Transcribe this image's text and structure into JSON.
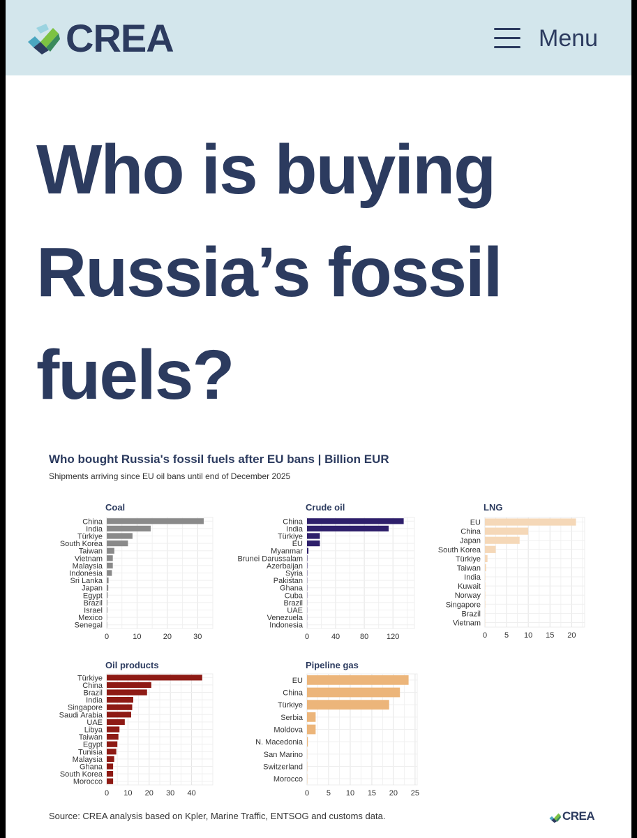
{
  "header": {
    "logo_text": "CREA",
    "menu_label": "Menu",
    "colors": {
      "background": "#d3e6ec",
      "text": "#2c3b5f"
    }
  },
  "article": {
    "headline": "Who is buying Russia’s fossil fuels?"
  },
  "figure": {
    "title": "Who bought Russia's fossil fuels after EU bans | Billion EUR",
    "subtitle": "Shipments arriving since EU oil bans until end of December 2025",
    "source": "Source: CREA analysis based on Kpler, Marine Traffic, ENTSOG and customs data.",
    "footer_logo": "CREA"
  },
  "chart_data": [
    {
      "type": "bar",
      "orientation": "horizontal",
      "title": "Coal",
      "color": "#8a8a8a",
      "categories": [
        "China",
        "India",
        "Türkiye",
        "South Korea",
        "Taiwan",
        "Vietnam",
        "Malaysia",
        "Indonesia",
        "Sri Lanka",
        "Japan",
        "Egypt",
        "Brazil",
        "Israel",
        "Mexico",
        "Senegal"
      ],
      "values": [
        32,
        14.5,
        8.5,
        7,
        2.5,
        2,
        2,
        1.7,
        0.6,
        0.5,
        0.3,
        0.2,
        0.2,
        0.1,
        0.1
      ],
      "xlim": [
        0,
        35
      ],
      "xticks": [
        0,
        10,
        20,
        30
      ]
    },
    {
      "type": "bar",
      "orientation": "horizontal",
      "title": "Crude oil",
      "color": "#2e1f6b",
      "categories": [
        "China",
        "India",
        "Türkiye",
        "EU",
        "Myanmar",
        "Brunei Darussalam",
        "Azerbaijan",
        "Syria",
        "Pakistan",
        "Ghana",
        "Cuba",
        "Brazil",
        "UAE",
        "Venezuela",
        "Indonesia"
      ],
      "values": [
        135,
        114,
        18,
        18,
        2,
        0.5,
        0.5,
        0.4,
        0.3,
        0.3,
        0.3,
        0.2,
        0.2,
        0.2,
        0.1
      ],
      "xlim": [
        0,
        150
      ],
      "xticks": [
        0,
        40,
        80,
        120
      ]
    },
    {
      "type": "bar",
      "orientation": "horizontal",
      "title": "LNG",
      "color": "#f5d8b8",
      "categories": [
        "EU",
        "China",
        "Japan",
        "South Korea",
        "Türkiye",
        "Taiwan",
        "India",
        "Kuwait",
        "Norway",
        "Singapore",
        "Brazil",
        "Vietnam"
      ],
      "values": [
        21,
        10,
        8,
        2.5,
        0.6,
        0.3,
        0.1,
        0.1,
        0.1,
        0.1,
        0.05,
        0.05
      ],
      "xlim": [
        0,
        23
      ],
      "xticks": [
        0,
        5,
        10,
        15,
        20
      ]
    },
    {
      "type": "bar",
      "orientation": "horizontal",
      "title": "Oil products",
      "color": "#8e1a14",
      "categories": [
        "Türkiye",
        "China",
        "Brazil",
        "India",
        "Singapore",
        "Saudi Arabia",
        "UAE",
        "Libya",
        "Taiwan",
        "Egypt",
        "Tunisia",
        "Malaysia",
        "Ghana",
        "South Korea",
        "Morocco"
      ],
      "values": [
        45,
        21,
        19,
        12.5,
        12,
        11.5,
        8.5,
        6,
        5.5,
        5,
        4.5,
        3.5,
        3,
        3,
        3
      ],
      "xlim": [
        0,
        50
      ],
      "xticks": [
        0,
        10,
        20,
        30,
        40
      ]
    },
    {
      "type": "bar",
      "orientation": "horizontal",
      "title": "Pipeline gas",
      "color": "#ecb57a",
      "categories": [
        "EU",
        "China",
        "Türkiye",
        "Serbia",
        "Moldova",
        "N. Macedonia",
        "San Marino",
        "Switzerland",
        "Morocco"
      ],
      "values": [
        23.5,
        21.5,
        19,
        2,
        2,
        0.2,
        0.05,
        0.05,
        0.05
      ],
      "xlim": [
        0,
        25.5
      ],
      "xticks": [
        0,
        5,
        10,
        15,
        20,
        25
      ]
    }
  ]
}
